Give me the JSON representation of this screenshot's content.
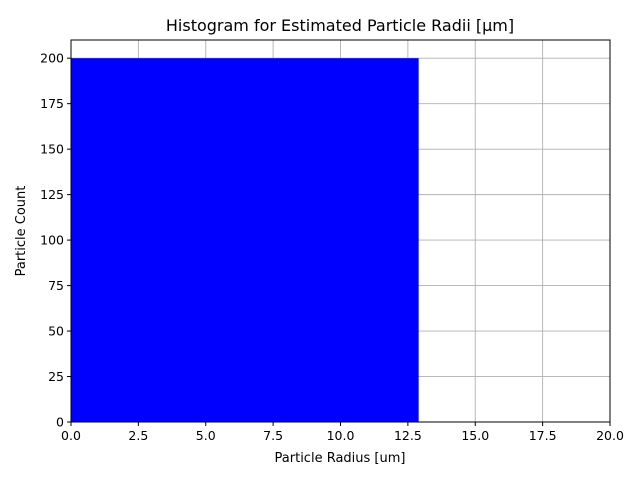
{
  "chart_data": {
    "type": "bar",
    "title": "Histogram for Estimated Particle Radii [μm]",
    "xlabel": "Particle Radius [um]",
    "ylabel": "Particle Count",
    "xlim": [
      0,
      20
    ],
    "ylim": [
      0,
      210
    ],
    "xticks": [
      "0.0",
      "2.5",
      "5.0",
      "7.5",
      "10.0",
      "12.5",
      "15.0",
      "17.5",
      "20.0"
    ],
    "yticks": [
      "0",
      "25",
      "50",
      "75",
      "100",
      "125",
      "150",
      "175",
      "200"
    ],
    "grid": true,
    "bar_color": "#0000ff",
    "bins": [
      {
        "x_start": 0.0,
        "x_end": 12.9,
        "count": 200
      }
    ]
  }
}
